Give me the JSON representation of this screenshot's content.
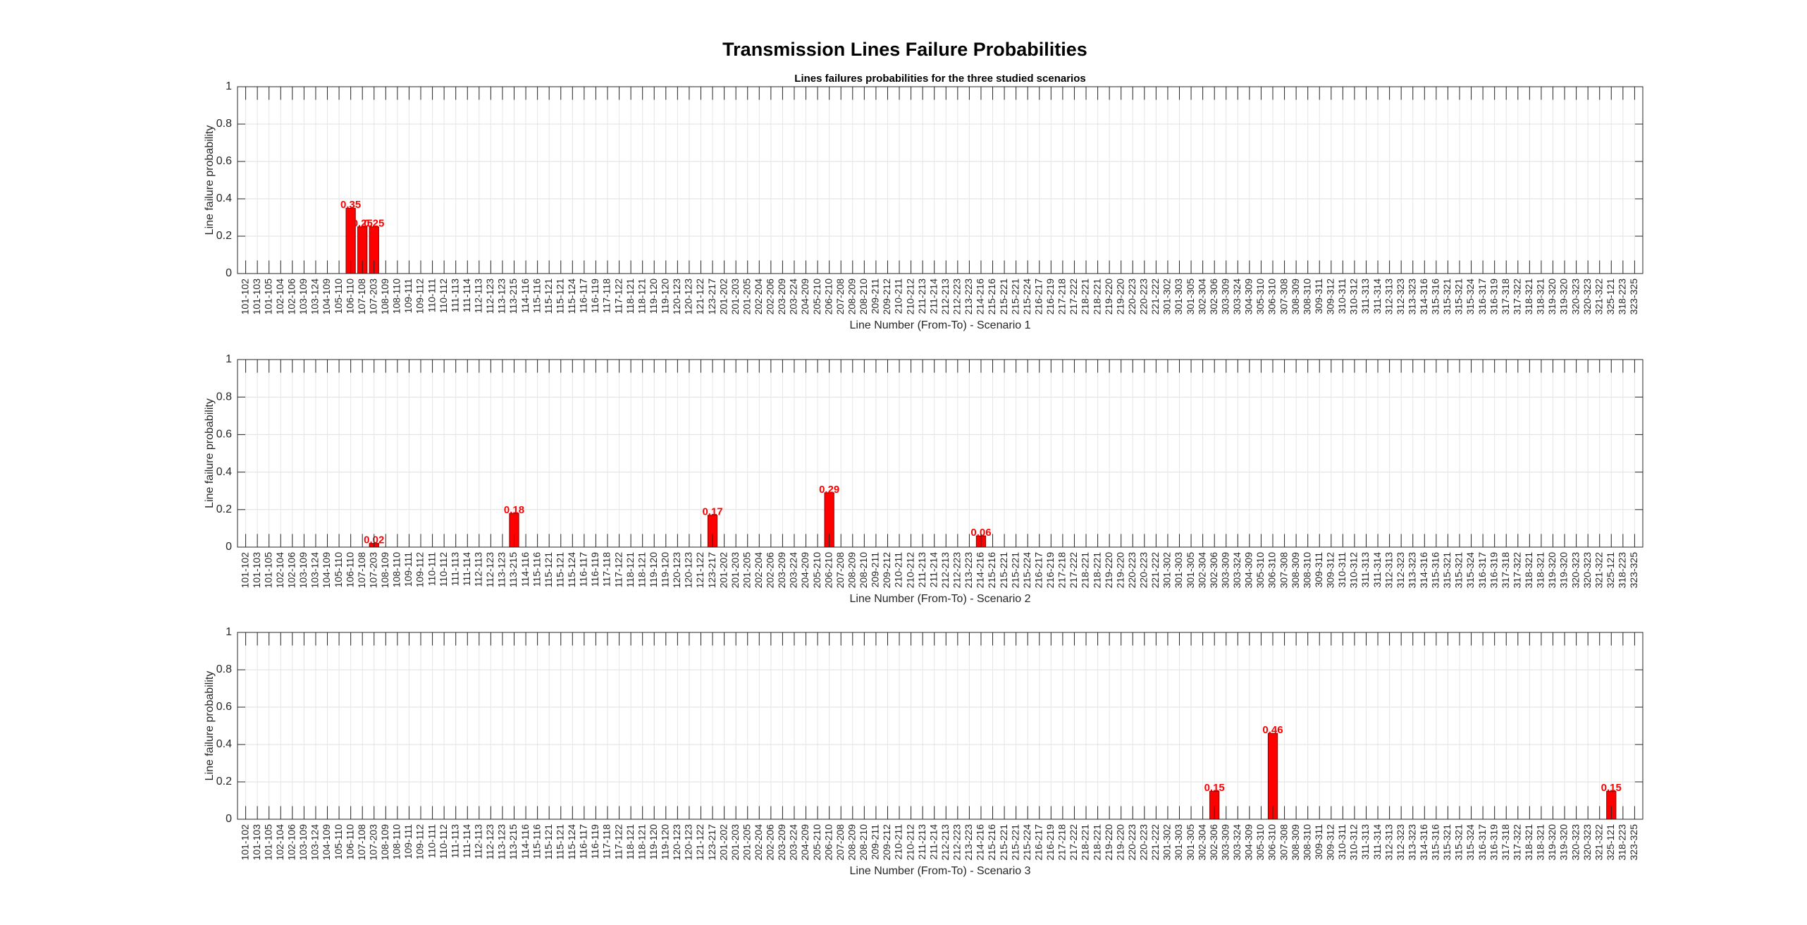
{
  "title": "Transmission Lines Failure Probabilities",
  "chart_data": [
    {
      "type": "bar",
      "subtitle": "Lines failures probabilities for the three studied scenarios",
      "xlabel": "Line Number (From-To) - Scenario 1",
      "ylabel": "Line failure probability",
      "categories": [
        "101-102",
        "101-103",
        "101-105",
        "102-104",
        "102-106",
        "103-109",
        "103-124",
        "104-109",
        "105-110",
        "106-110",
        "107-108",
        "107-203",
        "108-109",
        "108-110",
        "109-111",
        "109-112",
        "110-111",
        "110-112",
        "111-113",
        "111-114",
        "112-113",
        "112-123",
        "113-123",
        "113-215",
        "114-116",
        "115-116",
        "115-121",
        "115-121",
        "115-124",
        "116-117",
        "116-119",
        "117-118",
        "117-122",
        "118-121",
        "118-121",
        "119-120",
        "119-120",
        "120-123",
        "120-123",
        "121-122",
        "123-217",
        "201-202",
        "201-203",
        "201-205",
        "202-204",
        "202-206",
        "203-209",
        "203-224",
        "204-209",
        "205-210",
        "206-210",
        "207-208",
        "208-209",
        "208-210",
        "209-211",
        "209-212",
        "210-211",
        "210-212",
        "211-213",
        "211-214",
        "212-213",
        "212-223",
        "213-223",
        "214-216",
        "215-216",
        "215-221",
        "215-221",
        "215-224",
        "216-217",
        "216-219",
        "217-218",
        "217-222",
        "218-221",
        "218-221",
        "219-220",
        "219-220",
        "220-223",
        "220-223",
        "221-222",
        "301-302",
        "301-303",
        "301-305",
        "302-304",
        "302-306",
        "303-309",
        "303-324",
        "304-309",
        "305-310",
        "306-310",
        "307-308",
        "308-309",
        "308-310",
        "309-311",
        "309-312",
        "310-311",
        "310-312",
        "311-313",
        "311-314",
        "312-313",
        "312-323",
        "313-323",
        "314-316",
        "315-316",
        "315-321",
        "315-321",
        "315-324",
        "316-317",
        "316-319",
        "317-318",
        "317-322",
        "318-321",
        "318-321",
        "319-320",
        "319-320",
        "320-323",
        "320-323",
        "321-322",
        "325-121",
        "318-223",
        "323-325"
      ],
      "values": [
        0,
        0,
        0,
        0,
        0,
        0,
        0,
        0,
        0,
        0.35,
        0.25,
        0.25,
        0,
        0,
        0,
        0,
        0,
        0,
        0,
        0,
        0,
        0,
        0,
        0,
        0,
        0,
        0,
        0,
        0,
        0,
        0,
        0,
        0,
        0,
        0,
        0,
        0,
        0,
        0,
        0,
        0,
        0,
        0,
        0,
        0,
        0,
        0,
        0,
        0,
        0,
        0,
        0,
        0,
        0,
        0,
        0,
        0,
        0,
        0,
        0,
        0,
        0,
        0,
        0,
        0,
        0,
        0,
        0,
        0,
        0,
        0,
        0,
        0,
        0,
        0,
        0,
        0,
        0,
        0,
        0,
        0,
        0,
        0,
        0,
        0,
        0,
        0,
        0,
        0,
        0,
        0,
        0,
        0,
        0,
        0,
        0,
        0,
        0,
        0,
        0,
        0,
        0,
        0,
        0,
        0,
        0,
        0,
        0,
        0,
        0,
        0,
        0,
        0,
        0,
        0,
        0,
        0,
        0,
        0,
        0
      ],
      "color": "#ff0000",
      "ylim": [
        0,
        1
      ],
      "yticks": [
        0,
        0.2,
        0.4,
        0.6,
        0.8,
        1
      ],
      "grid": true
    },
    {
      "type": "bar",
      "xlabel": "Line Number (From-To) - Scenario 2",
      "ylabel": "Line failure probability",
      "categories": [
        "101-102",
        "101-103",
        "101-105",
        "102-104",
        "102-106",
        "103-109",
        "103-124",
        "104-109",
        "105-110",
        "106-110",
        "107-108",
        "107-203",
        "108-109",
        "108-110",
        "109-111",
        "109-112",
        "110-111",
        "110-112",
        "111-113",
        "111-114",
        "112-113",
        "112-123",
        "113-123",
        "113-215",
        "114-116",
        "115-116",
        "115-121",
        "115-121",
        "115-124",
        "116-117",
        "116-119",
        "117-118",
        "117-122",
        "118-121",
        "118-121",
        "119-120",
        "119-120",
        "120-123",
        "120-123",
        "121-122",
        "123-217",
        "201-202",
        "201-203",
        "201-205",
        "202-204",
        "202-206",
        "203-209",
        "203-224",
        "204-209",
        "205-210",
        "206-210",
        "207-208",
        "208-209",
        "208-210",
        "209-211",
        "209-212",
        "210-211",
        "210-212",
        "211-213",
        "211-214",
        "212-213",
        "212-223",
        "213-223",
        "214-216",
        "215-216",
        "215-221",
        "215-221",
        "215-224",
        "216-217",
        "216-219",
        "217-218",
        "217-222",
        "218-221",
        "218-221",
        "219-220",
        "219-220",
        "220-223",
        "220-223",
        "221-222",
        "301-302",
        "301-303",
        "301-305",
        "302-304",
        "302-306",
        "303-309",
        "303-324",
        "304-309",
        "305-310",
        "306-310",
        "307-308",
        "308-309",
        "308-310",
        "309-311",
        "309-312",
        "310-311",
        "310-312",
        "311-313",
        "311-314",
        "312-313",
        "312-323",
        "313-323",
        "314-316",
        "315-316",
        "315-321",
        "315-321",
        "315-324",
        "316-317",
        "316-319",
        "317-318",
        "317-322",
        "318-321",
        "318-321",
        "319-320",
        "319-320",
        "320-323",
        "320-323",
        "321-322",
        "325-121",
        "318-223",
        "323-325"
      ],
      "values": [
        0,
        0,
        0,
        0,
        0,
        0,
        0,
        0,
        0,
        0,
        0,
        0.02,
        0,
        0,
        0,
        0,
        0,
        0,
        0,
        0,
        0,
        0,
        0,
        0.18,
        0,
        0,
        0,
        0,
        0,
        0,
        0,
        0,
        0,
        0,
        0,
        0,
        0,
        0,
        0,
        0,
        0.17,
        0,
        0,
        0,
        0,
        0,
        0,
        0,
        0,
        0,
        0.29,
        0,
        0,
        0,
        0,
        0,
        0,
        0,
        0,
        0,
        0,
        0,
        0,
        0.06,
        0,
        0,
        0,
        0,
        0,
        0,
        0,
        0,
        0,
        0,
        0,
        0,
        0,
        0,
        0,
        0,
        0,
        0,
        0,
        0,
        0,
        0,
        0,
        0,
        0,
        0,
        0,
        0,
        0,
        0,
        0,
        0,
        0,
        0,
        0,
        0,
        0,
        0,
        0,
        0,
        0,
        0,
        0,
        0,
        0,
        0,
        0,
        0,
        0,
        0,
        0,
        0,
        0,
        0,
        0,
        0
      ],
      "color": "#ff0000",
      "ylim": [
        0,
        1
      ],
      "yticks": [
        0,
        0.2,
        0.4,
        0.6,
        0.8,
        1
      ],
      "grid": true
    },
    {
      "type": "bar",
      "xlabel": "Line Number (From-To) - Scenario 3",
      "ylabel": "Line failure probability",
      "categories": [
        "101-102",
        "101-103",
        "101-105",
        "102-104",
        "102-106",
        "103-109",
        "103-124",
        "104-109",
        "105-110",
        "106-110",
        "107-108",
        "107-203",
        "108-109",
        "108-110",
        "109-111",
        "109-112",
        "110-111",
        "110-112",
        "111-113",
        "111-114",
        "112-113",
        "112-123",
        "113-123",
        "113-215",
        "114-116",
        "115-116",
        "115-121",
        "115-121",
        "115-124",
        "116-117",
        "116-119",
        "117-118",
        "117-122",
        "118-121",
        "118-121",
        "119-120",
        "119-120",
        "120-123",
        "120-123",
        "121-122",
        "123-217",
        "201-202",
        "201-203",
        "201-205",
        "202-204",
        "202-206",
        "203-209",
        "203-224",
        "204-209",
        "205-210",
        "206-210",
        "207-208",
        "208-209",
        "208-210",
        "209-211",
        "209-212",
        "210-211",
        "210-212",
        "211-213",
        "211-214",
        "212-213",
        "212-223",
        "213-223",
        "214-216",
        "215-216",
        "215-221",
        "215-221",
        "215-224",
        "216-217",
        "216-219",
        "217-218",
        "217-222",
        "218-221",
        "218-221",
        "219-220",
        "219-220",
        "220-223",
        "220-223",
        "221-222",
        "301-302",
        "301-303",
        "301-305",
        "302-304",
        "302-306",
        "303-309",
        "303-324",
        "304-309",
        "305-310",
        "306-310",
        "307-308",
        "308-309",
        "308-310",
        "309-311",
        "309-312",
        "310-311",
        "310-312",
        "311-313",
        "311-314",
        "312-313",
        "312-323",
        "313-323",
        "314-316",
        "315-316",
        "315-321",
        "315-321",
        "315-324",
        "316-317",
        "316-319",
        "317-318",
        "317-322",
        "318-321",
        "318-321",
        "319-320",
        "319-320",
        "320-323",
        "320-323",
        "321-322",
        "325-121",
        "318-223",
        "323-325"
      ],
      "values": [
        0,
        0,
        0,
        0,
        0,
        0,
        0,
        0,
        0,
        0,
        0,
        0,
        0,
        0,
        0,
        0,
        0,
        0,
        0,
        0,
        0,
        0,
        0,
        0,
        0,
        0,
        0,
        0,
        0,
        0,
        0,
        0,
        0,
        0,
        0,
        0,
        0,
        0,
        0,
        0,
        0,
        0,
        0,
        0,
        0,
        0,
        0,
        0,
        0,
        0,
        0,
        0,
        0,
        0,
        0,
        0,
        0,
        0,
        0,
        0,
        0,
        0,
        0,
        0,
        0,
        0,
        0,
        0,
        0,
        0,
        0,
        0,
        0,
        0,
        0,
        0,
        0,
        0,
        0,
        0,
        0,
        0,
        0,
        0.15,
        0,
        0,
        0,
        0,
        0.46,
        0,
        0,
        0,
        0,
        0,
        0,
        0,
        0,
        0,
        0,
        0,
        0,
        0,
        0,
        0,
        0,
        0,
        0,
        0,
        0,
        0,
        0,
        0,
        0,
        0,
        0,
        0,
        0,
        0.15,
        0,
        0
      ],
      "color": "#ff0000",
      "ylim": [
        0,
        1
      ],
      "yticks": [
        0,
        0.2,
        0.4,
        0.6,
        0.8,
        1
      ],
      "grid": true
    }
  ]
}
